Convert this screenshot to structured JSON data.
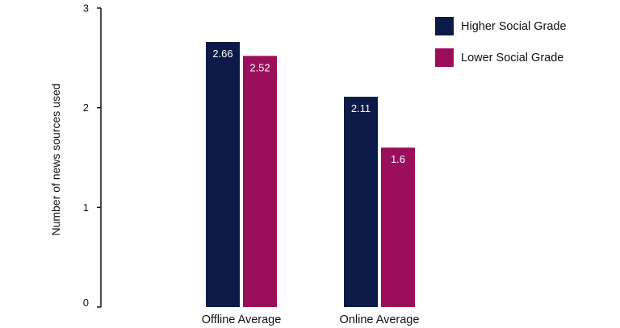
{
  "chart_data": {
    "type": "bar",
    "title": "",
    "xlabel": "",
    "ylabel": "Number of news sources used",
    "ylim": [
      0,
      3
    ],
    "yticks": [
      "0",
      "1",
      "2",
      "3"
    ],
    "grid": false,
    "legend_position": "top-right",
    "categories": [
      "Offline Average",
      "Online Average"
    ],
    "series": [
      {
        "name": "Higher Social Grade",
        "color": "#0c1a47",
        "values": [
          2.66,
          2.11
        ],
        "labels": [
          "2.66",
          "2.11"
        ]
      },
      {
        "name": "Lower Social Grade",
        "color": "#9b0f5a",
        "values": [
          2.52,
          1.6
        ],
        "labels": [
          "2.52",
          "1.6"
        ]
      }
    ]
  }
}
